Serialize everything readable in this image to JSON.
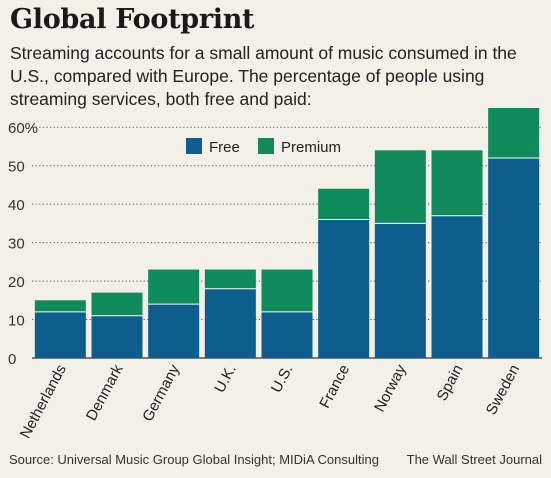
{
  "title": "Global Footprint",
  "subtitle": "Streaming accounts for a small amount of music consumed in the U.S., compared with Europe. The percentage of people using streaming services, both free and paid:",
  "source": "Source: Universal Music Group Global Insight; MIDiA Consulting",
  "publisher": "The Wall Street Journal",
  "colors": {
    "free": "#0d5e8c",
    "premium": "#0f8a5b",
    "grid": "#555555",
    "background": "#f3f0e8"
  },
  "chart_data": {
    "type": "bar",
    "stacked": true,
    "categories": [
      "Netherlands",
      "Denmark",
      "Germany",
      "U.K.",
      "U.S.",
      "France",
      "Norway",
      "Spain",
      "Sweden"
    ],
    "series": [
      {
        "name": "Free",
        "values": [
          12,
          11,
          14,
          18,
          12,
          36,
          35,
          37,
          52
        ]
      },
      {
        "name": "Premium",
        "values": [
          3,
          6,
          9,
          5,
          11,
          8,
          19,
          17,
          13
        ]
      }
    ],
    "totals": [
      15,
      17,
      23,
      23,
      23,
      44,
      54,
      54,
      65
    ],
    "ylim": [
      0,
      65
    ],
    "yticks": [
      0,
      10,
      20,
      30,
      40,
      50,
      60
    ],
    "ytick_labels": [
      "0",
      "10",
      "20",
      "30",
      "40",
      "50",
      "60%"
    ],
    "grid": true,
    "legend_position": "top-left"
  }
}
